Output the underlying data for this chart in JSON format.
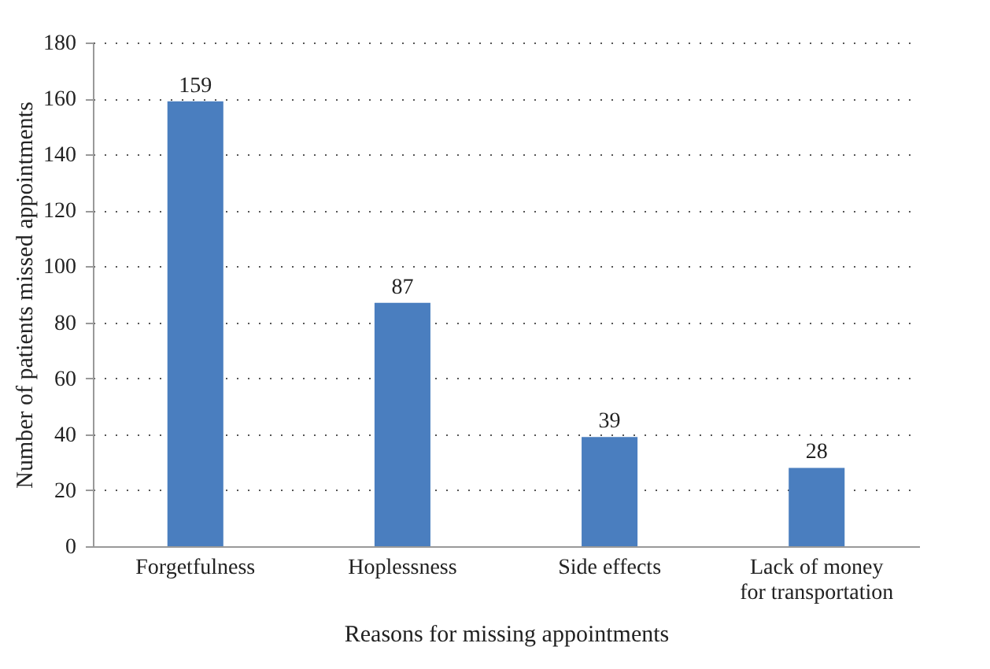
{
  "chart_data": {
    "type": "bar",
    "xlabel": "Reasons for missing appointments",
    "ylabel": "Number of patients missed appointments",
    "categories": [
      "Forgetfulness",
      "Hoplessness",
      "Side effects",
      "Lack of money for transportation"
    ],
    "values": [
      159,
      87,
      39,
      28
    ],
    "color": "#4a7ebf",
    "ylim": [
      0,
      180
    ],
    "yticks": [
      0,
      20,
      40,
      60,
      80,
      100,
      120,
      140,
      160,
      180
    ],
    "grid": "y",
    "data_labels": true
  }
}
